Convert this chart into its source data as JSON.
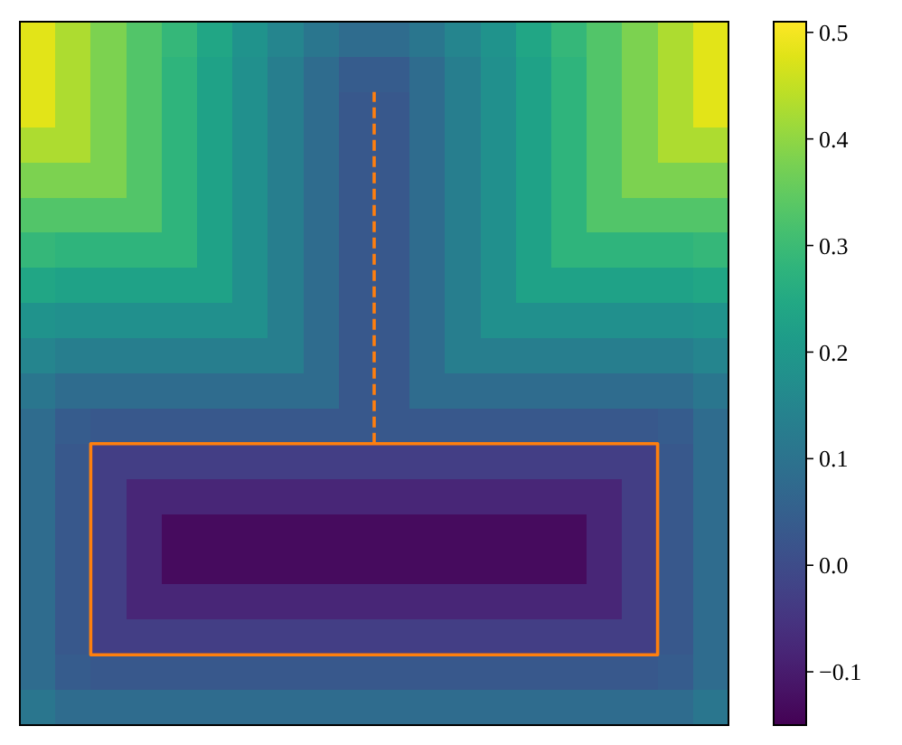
{
  "chart_data": {
    "type": "heatmap",
    "categories": [
      null,
      null,
      null,
      null,
      null,
      null,
      null,
      null,
      null,
      null,
      null,
      null,
      null,
      null,
      null,
      null,
      null,
      null,
      null,
      null
    ],
    "y_categories": [
      null,
      null,
      null,
      null,
      null,
      null,
      null,
      null,
      null,
      null,
      null,
      null,
      null,
      null,
      null,
      null,
      null,
      null,
      null,
      null
    ],
    "cells": [
      [
        0.48,
        0.43,
        0.38,
        0.33,
        0.29,
        0.24,
        0.19,
        0.15,
        0.11,
        0.08,
        0.08,
        0.11,
        0.15,
        0.19,
        0.24,
        0.29,
        0.33,
        0.38,
        0.43,
        0.48
      ],
      [
        0.48,
        0.43,
        0.38,
        0.33,
        0.28,
        0.23,
        0.18,
        0.13,
        0.08,
        0.04,
        0.04,
        0.08,
        0.13,
        0.18,
        0.23,
        0.28,
        0.33,
        0.38,
        0.43,
        0.48
      ],
      [
        0.48,
        0.43,
        0.38,
        0.33,
        0.28,
        0.23,
        0.18,
        0.13,
        0.08,
        0.03,
        0.03,
        0.08,
        0.13,
        0.18,
        0.23,
        0.28,
        0.33,
        0.38,
        0.43,
        0.48
      ],
      [
        0.43,
        0.43,
        0.38,
        0.33,
        0.28,
        0.23,
        0.18,
        0.13,
        0.08,
        0.03,
        0.03,
        0.08,
        0.13,
        0.18,
        0.23,
        0.28,
        0.33,
        0.38,
        0.43,
        0.43
      ],
      [
        0.38,
        0.38,
        0.38,
        0.33,
        0.28,
        0.23,
        0.18,
        0.13,
        0.08,
        0.03,
        0.03,
        0.08,
        0.13,
        0.18,
        0.23,
        0.28,
        0.33,
        0.38,
        0.38,
        0.38
      ],
      [
        0.33,
        0.33,
        0.33,
        0.33,
        0.28,
        0.23,
        0.18,
        0.13,
        0.08,
        0.03,
        0.03,
        0.08,
        0.13,
        0.18,
        0.23,
        0.28,
        0.33,
        0.33,
        0.33,
        0.33
      ],
      [
        0.29,
        0.28,
        0.28,
        0.28,
        0.28,
        0.23,
        0.18,
        0.13,
        0.08,
        0.03,
        0.03,
        0.08,
        0.13,
        0.18,
        0.23,
        0.28,
        0.28,
        0.28,
        0.28,
        0.29
      ],
      [
        0.24,
        0.23,
        0.23,
        0.23,
        0.23,
        0.23,
        0.18,
        0.13,
        0.08,
        0.03,
        0.03,
        0.08,
        0.13,
        0.18,
        0.23,
        0.23,
        0.23,
        0.23,
        0.23,
        0.24
      ],
      [
        0.19,
        0.18,
        0.18,
        0.18,
        0.18,
        0.18,
        0.18,
        0.13,
        0.08,
        0.03,
        0.03,
        0.08,
        0.13,
        0.18,
        0.18,
        0.18,
        0.18,
        0.18,
        0.18,
        0.19
      ],
      [
        0.15,
        0.13,
        0.13,
        0.13,
        0.13,
        0.13,
        0.13,
        0.13,
        0.08,
        0.03,
        0.03,
        0.08,
        0.13,
        0.13,
        0.13,
        0.13,
        0.13,
        0.13,
        0.13,
        0.15
      ],
      [
        0.11,
        0.08,
        0.08,
        0.08,
        0.08,
        0.08,
        0.08,
        0.08,
        0.08,
        0.03,
        0.03,
        0.08,
        0.08,
        0.08,
        0.08,
        0.08,
        0.08,
        0.08,
        0.08,
        0.11
      ],
      [
        0.08,
        0.04,
        0.03,
        0.03,
        0.03,
        0.03,
        0.03,
        0.03,
        0.03,
        0.03,
        0.03,
        0.03,
        0.03,
        0.03,
        0.03,
        0.03,
        0.03,
        0.03,
        0.04,
        0.08
      ],
      [
        0.08,
        0.03,
        -0.03,
        -0.03,
        -0.03,
        -0.03,
        -0.03,
        -0.03,
        -0.03,
        -0.03,
        -0.03,
        -0.03,
        -0.03,
        -0.03,
        -0.03,
        -0.03,
        -0.03,
        -0.03,
        0.03,
        0.08
      ],
      [
        0.08,
        0.03,
        -0.03,
        -0.08,
        -0.08,
        -0.08,
        -0.08,
        -0.08,
        -0.08,
        -0.08,
        -0.08,
        -0.08,
        -0.08,
        -0.08,
        -0.08,
        -0.08,
        -0.08,
        -0.03,
        0.03,
        0.08
      ],
      [
        0.08,
        0.03,
        -0.03,
        -0.08,
        -0.13,
        -0.13,
        -0.13,
        -0.13,
        -0.13,
        -0.13,
        -0.13,
        -0.13,
        -0.13,
        -0.13,
        -0.13,
        -0.13,
        -0.08,
        -0.03,
        0.03,
        0.08
      ],
      [
        0.08,
        0.03,
        -0.03,
        -0.08,
        -0.13,
        -0.13,
        -0.13,
        -0.13,
        -0.13,
        -0.13,
        -0.13,
        -0.13,
        -0.13,
        -0.13,
        -0.13,
        -0.13,
        -0.08,
        -0.03,
        0.03,
        0.08
      ],
      [
        0.08,
        0.03,
        -0.03,
        -0.08,
        -0.08,
        -0.08,
        -0.08,
        -0.08,
        -0.08,
        -0.08,
        -0.08,
        -0.08,
        -0.08,
        -0.08,
        -0.08,
        -0.08,
        -0.08,
        -0.03,
        0.03,
        0.08
      ],
      [
        0.08,
        0.03,
        -0.03,
        -0.03,
        -0.03,
        -0.03,
        -0.03,
        -0.03,
        -0.03,
        -0.03,
        -0.03,
        -0.03,
        -0.03,
        -0.03,
        -0.03,
        -0.03,
        -0.03,
        -0.03,
        0.03,
        0.08
      ],
      [
        0.08,
        0.04,
        0.03,
        0.03,
        0.03,
        0.03,
        0.03,
        0.03,
        0.03,
        0.03,
        0.03,
        0.03,
        0.03,
        0.03,
        0.03,
        0.03,
        0.03,
        0.03,
        0.04,
        0.08
      ],
      [
        0.11,
        0.08,
        0.08,
        0.08,
        0.08,
        0.08,
        0.08,
        0.08,
        0.08,
        0.08,
        0.08,
        0.08,
        0.08,
        0.08,
        0.08,
        0.08,
        0.08,
        0.08,
        0.08,
        0.11
      ]
    ],
    "clim": [
      -0.15,
      0.51
    ],
    "cticks": [
      {
        "value": -0.1,
        "label": "−0.1"
      },
      {
        "value": 0,
        "label": "0.0"
      },
      0.1,
      0.2,
      0.3,
      0.4,
      0.5
    ],
    "tick_labels": false
  }
}
